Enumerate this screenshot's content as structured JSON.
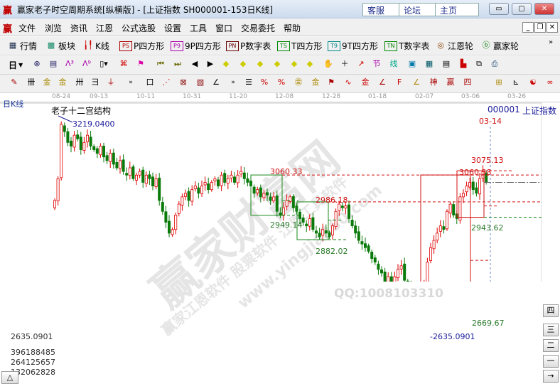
{
  "window": {
    "title": "赢家老子时空周期系统[纵横版] - [上证指数  SH000001-153日K线]",
    "links": [
      "客服",
      "论坛",
      "主页"
    ],
    "controls": [
      "minimize",
      "maximize",
      "close"
    ]
  },
  "menu": {
    "items": [
      "文件",
      "浏览",
      "资讯",
      "江恩",
      "公式选股",
      "设置",
      "工具",
      "窗口",
      "交易委托",
      "帮助"
    ]
  },
  "toolbar1": {
    "items": [
      {
        "icon": "table-icon",
        "label": "行情"
      },
      {
        "icon": "blocks-icon",
        "label": "板块"
      },
      {
        "icon": "kline-icon",
        "label": "K线"
      },
      {
        "icon": "PS",
        "label": "P四方形"
      },
      {
        "icon": "P9",
        "label": "9P四方形"
      },
      {
        "icon": "PN",
        "label": "P数字表"
      },
      {
        "icon": "TS",
        "label": "T四方形"
      },
      {
        "icon": "T9",
        "label": "9T四方形"
      },
      {
        "icon": "TN",
        "label": "T数字表"
      },
      {
        "icon": "target-icon",
        "label": "江恩轮"
      },
      {
        "icon": "big-icon",
        "label": "赢家轮"
      }
    ],
    "more": "»"
  },
  "toolbar2": {
    "period": "日"
  },
  "date_axis": [
    "08-24",
    "09-13",
    "10-11",
    "10-31",
    "11-20",
    "12-08",
    "12-28",
    "01-18",
    "02-07",
    "03-06",
    "03-26"
  ],
  "chart": {
    "period_label": "日K线",
    "study_title": "老子十二宫结构",
    "symbol_code": "000001",
    "symbol_name": "上证指数",
    "cursor_date": "03-14",
    "annotations": {
      "high": "3219.0400",
      "low": "-2635.0901",
      "low_left": "2635.0901",
      "box1_top": "3060.33",
      "box1_bottom": "2949.14",
      "box2_top": "2986.18",
      "box2_bottom": "2882.02",
      "box3_bottom": "2669.67",
      "box4_top": "3060.58",
      "box4_bottom": "2943.62",
      "last_high": "3075.13"
    },
    "colors": {
      "up": "#e00000",
      "down": "#0a7a0a",
      "box_green": "#1a8a1a",
      "box_red": "#d01010",
      "label_blue": "#1a1a9a"
    },
    "closes": [
      2990,
      3050,
      3200,
      3180,
      3150,
      3140,
      3170,
      3160,
      3130,
      3150,
      3170,
      3140,
      3130,
      3120,
      3140,
      3110,
      3100,
      3120,
      3090,
      3080,
      3100,
      3070,
      3060,
      3080,
      3050,
      3060,
      3070,
      3040,
      3060,
      3050,
      3030,
      3050,
      2990,
      2960,
      2930,
      2900,
      2910,
      2950,
      2980,
      3000,
      3010,
      2990,
      3020,
      3030,
      3010,
      3030,
      3040,
      3020,
      3040,
      3050,
      3030,
      3060,
      3040,
      3050,
      3060,
      3040,
      3060,
      3070,
      3050,
      3040,
      3030,
      3010,
      3020,
      3000,
      3010,
      3005,
      2990,
      3000,
      2960,
      2950,
      2970,
      2990,
      3000,
      2970,
      2960,
      2940,
      2930,
      2920,
      2940,
      2910,
      2900,
      2890,
      2910,
      2900,
      2890,
      2920,
      2960,
      2980,
      2970,
      2975,
      2940,
      2920,
      2900,
      2880,
      2870,
      2860,
      2850,
      2830,
      2820,
      2800,
      2790,
      2760,
      2780,
      2740,
      2780,
      2800,
      2810,
      2770,
      2760,
      2700,
      2680,
      2650,
      2700,
      2760,
      2820,
      2860,
      2880,
      2900,
      2920,
      2910,
      2960,
      2980,
      2950,
      2940,
      3000,
      3010,
      3030,
      3040,
      3020,
      3010,
      3050,
      3070,
      3040
    ],
    "volume_ticks": [
      "396188485",
      "264125657",
      "132062828"
    ],
    "volumes": [
      330000000.0,
      320000000.0,
      420000000.0,
      360000000.0,
      330000000.0,
      310000000.0,
      350000000.0,
      320000000.0,
      290000000.0,
      300000000.0,
      280000000.0,
      260000000.0,
      310000000.0,
      270000000.0,
      280000000.0,
      290000000.0,
      310000000.0,
      290000000.0,
      280000000.0,
      290000000.0,
      270000000.0,
      270000000.0,
      310000000.0,
      280000000.0,
      280000000.0,
      260000000.0,
      290000000.0,
      290000000.0,
      300000000.0,
      290000000.0,
      280000000.0,
      290000000.0,
      330000000.0,
      310000000.0,
      350000000.0,
      390000000.0,
      300000000.0,
      290000000.0,
      310000000.0,
      300000000.0,
      280000000.0,
      270000000.0,
      290000000.0,
      300000000.0,
      280000000.0,
      290000000.0,
      300000000.0,
      280000000.0,
      290000000.0,
      300000000.0,
      280000000.0,
      310000000.0,
      290000000.0,
      280000000.0,
      300000000.0,
      290000000.0,
      300000000.0,
      310000000.0,
      280000000.0,
      270000000.0,
      280000000.0,
      300000000.0,
      280000000.0,
      290000000.0,
      270000000.0,
      280000000.0,
      290000000.0,
      280000000.0,
      300000000.0,
      290000000.0,
      280000000.0,
      300000000.0,
      310000000.0,
      290000000.0,
      280000000.0,
      300000000.0,
      280000000.0,
      290000000.0,
      270000000.0,
      290000000.0,
      280000000.0,
      300000000.0,
      270000000.0,
      280000000.0,
      290000000.0,
      300000000.0,
      330000000.0,
      320000000.0,
      300000000.0,
      290000000.0,
      310000000.0,
      290000000.0,
      280000000.0,
      300000000.0,
      290000000.0,
      280000000.0,
      290000000.0,
      300000000.0,
      280000000.0,
      290000000.0,
      310000000.0,
      320000000.0,
      290000000.0,
      300000000.0,
      330000000.0,
      310000000.0,
      300000000.0,
      320000000.0,
      300000000.0,
      340000000.0,
      360000000.0,
      390000000.0,
      350000000.0,
      380000000.0,
      370000000.0,
      330000000.0,
      310000000.0,
      290000000.0,
      320000000.0,
      300000000.0,
      310000000.0,
      290000000.0,
      340000000.0,
      310000000.0,
      290000000.0,
      290000000.0,
      290000000.0,
      280000000.0,
      290000000.0,
      260000000.0,
      280000000.0,
      300000000.0,
      290000000.0
    ]
  },
  "side_buttons": [
    "四",
    "三",
    "二",
    "一",
    "→"
  ],
  "scroll_up": "△",
  "watermark": {
    "brand": "赢家财富网",
    "sub": "赢家江恩软件 股票软件 江恩工具软件",
    "site": "www.yingjia360.com",
    "qq": "QQ:1008103310"
  }
}
